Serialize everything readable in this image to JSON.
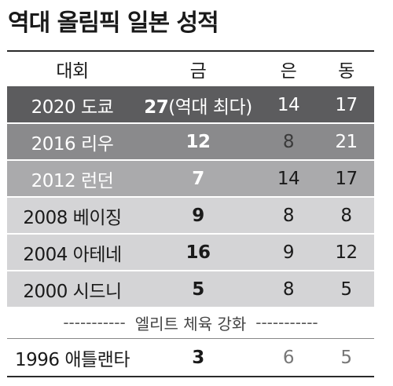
{
  "title": "역대 올림픽 일본 성적",
  "header": {
    "event": "대회",
    "gold": "금",
    "silver": "은",
    "bronze": "동"
  },
  "rows": [
    {
      "event": "2020 도쿄",
      "gold": "27",
      "gold_note": "(역대 최다)",
      "silver": "14",
      "bronze": "17"
    },
    {
      "event": "2016 리우",
      "gold": "12",
      "silver": "8",
      "bronze": "21"
    },
    {
      "event": "2012 런던",
      "gold": "7",
      "silver": "14",
      "bronze": "17"
    },
    {
      "event": "2008 베이징",
      "gold": "9",
      "silver": "8",
      "bronze": "8"
    },
    {
      "event": "2004 아테네",
      "gold": "16",
      "silver": "9",
      "bronze": "12"
    },
    {
      "event": "2000 시드니",
      "gold": "5",
      "silver": "8",
      "bronze": "5"
    }
  ],
  "divider": {
    "left_dashes": "-----------",
    "label": "엘리트 체육 강화",
    "right_dashes": "-----------"
  },
  "last_row": {
    "event": "1996 애틀랜타",
    "gold": "3",
    "silver": "6",
    "bronze": "5"
  }
}
